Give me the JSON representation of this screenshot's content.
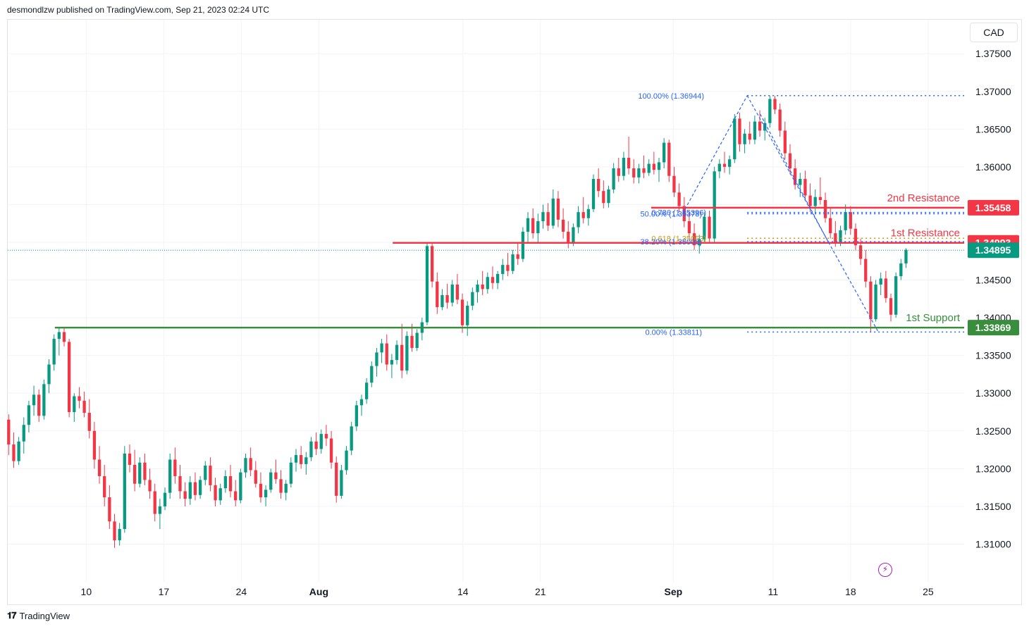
{
  "header": {
    "publisher": "desmondlzw published on TradingView.com, Sep 21, 2023 02:24 UTC"
  },
  "currency": "CAD",
  "footer": {
    "brand": "TradingView",
    "logo_icon": "tradingview-logo-icon"
  },
  "colors": {
    "up": "#089981",
    "down": "#f23645",
    "resistance": "#f23645",
    "support": "#388e3c",
    "fib": "#2962ff",
    "fib_gold": "#c79a00",
    "current": "#089981",
    "axis_text": "#131722",
    "grid": "#f0f3fa"
  },
  "chart_data": {
    "type": "candlestick",
    "symbol_currency": "CAD",
    "ylim": [
      1.305,
      1.3795
    ],
    "y_ticks": [
      1.31,
      1.315,
      1.32,
      1.325,
      1.33,
      1.335,
      1.34,
      1.345,
      1.35,
      1.355,
      1.36,
      1.365,
      1.37,
      1.375
    ],
    "y_tick_labels": [
      "1.31000",
      "1.31500",
      "1.32000",
      "1.32500",
      "1.33000",
      "1.33500",
      "1.34000",
      "1.34500",
      "1.35000",
      "1.35500",
      "1.36000",
      "1.36500",
      "1.37000",
      "1.37500"
    ],
    "x_ticks": [
      {
        "label": "10",
        "bar": 42
      },
      {
        "label": "17",
        "bar": 84
      },
      {
        "label": "24",
        "bar": 126
      },
      {
        "label": "Aug",
        "bar": 168
      },
      {
        "label": "14",
        "bar": 246
      },
      {
        "label": "21",
        "bar": 288
      },
      {
        "label": "Sep",
        "bar": 360
      },
      {
        "label": "11",
        "bar": 414
      },
      {
        "label": "18",
        "bar": 456
      },
      {
        "label": "25",
        "bar": 498
      }
    ],
    "bars_visible": 518,
    "candles": [
      [
        1.3265,
        1.3272,
        1.3218,
        1.3232
      ],
      [
        1.3232,
        1.3248,
        1.3201,
        1.321
      ],
      [
        1.321,
        1.3242,
        1.3205,
        1.3236
      ],
      [
        1.3236,
        1.3268,
        1.322,
        1.3258
      ],
      [
        1.3258,
        1.329,
        1.3248,
        1.3284
      ],
      [
        1.3284,
        1.331,
        1.327,
        1.3298
      ],
      [
        1.3298,
        1.3305,
        1.3262,
        1.327
      ],
      [
        1.327,
        1.3318,
        1.3265,
        1.3312
      ],
      [
        1.3312,
        1.3345,
        1.33,
        1.3338
      ],
      [
        1.3338,
        1.3378,
        1.333,
        1.3372
      ],
      [
        1.3372,
        1.3388,
        1.335,
        1.3381
      ],
      [
        1.3381,
        1.3386,
        1.3362,
        1.3368
      ],
      [
        1.3368,
        1.3372,
        1.3268,
        1.3275
      ],
      [
        1.3275,
        1.33,
        1.3262,
        1.3296
      ],
      [
        1.3296,
        1.3308,
        1.328,
        1.329
      ],
      [
        1.329,
        1.3302,
        1.3268,
        1.3274
      ],
      [
        1.3274,
        1.3292,
        1.324,
        1.325
      ],
      [
        1.325,
        1.3262,
        1.32,
        1.3212
      ],
      [
        1.3212,
        1.323,
        1.318,
        1.319
      ],
      [
        1.319,
        1.3205,
        1.315,
        1.3162
      ],
      [
        1.3162,
        1.3178,
        1.312,
        1.313
      ],
      [
        1.313,
        1.314,
        1.3095,
        1.3105
      ],
      [
        1.3105,
        1.3128,
        1.3098,
        1.312
      ],
      [
        1.312,
        1.323,
        1.3115,
        1.322
      ],
      [
        1.322,
        1.3232,
        1.3195,
        1.3205
      ],
      [
        1.3205,
        1.3225,
        1.317,
        1.318
      ],
      [
        1.318,
        1.3215,
        1.3175,
        1.3208
      ],
      [
        1.3208,
        1.322,
        1.3178,
        1.3185
      ],
      [
        1.3185,
        1.32,
        1.316,
        1.317
      ],
      [
        1.317,
        1.318,
        1.313,
        1.314
      ],
      [
        1.314,
        1.316,
        1.312,
        1.315
      ],
      [
        1.315,
        1.3175,
        1.3145,
        1.3168
      ],
      [
        1.3168,
        1.322,
        1.316,
        1.3212
      ],
      [
        1.3212,
        1.3228,
        1.318,
        1.319
      ],
      [
        1.319,
        1.3205,
        1.316,
        1.317
      ],
      [
        1.317,
        1.3182,
        1.315,
        1.316
      ],
      [
        1.316,
        1.319,
        1.3152,
        1.3182
      ],
      [
        1.3182,
        1.3195,
        1.3158,
        1.3165
      ],
      [
        1.3165,
        1.319,
        1.316,
        1.3185
      ],
      [
        1.3185,
        1.321,
        1.3178,
        1.3204
      ],
      [
        1.3204,
        1.3215,
        1.317,
        1.3178
      ],
      [
        1.3178,
        1.3188,
        1.315,
        1.3158
      ],
      [
        1.3158,
        1.318,
        1.3152,
        1.3174
      ],
      [
        1.3174,
        1.3198,
        1.3168,
        1.319
      ],
      [
        1.319,
        1.3205,
        1.3162,
        1.317
      ],
      [
        1.317,
        1.3185,
        1.315,
        1.3158
      ],
      [
        1.3158,
        1.32,
        1.3154,
        1.3195
      ],
      [
        1.3195,
        1.322,
        1.3188,
        1.3214
      ],
      [
        1.3214,
        1.3228,
        1.319,
        1.3198
      ],
      [
        1.3198,
        1.321,
        1.3175,
        1.318
      ],
      [
        1.318,
        1.3195,
        1.3155,
        1.3162
      ],
      [
        1.3162,
        1.3178,
        1.315,
        1.3172
      ],
      [
        1.3172,
        1.32,
        1.3168,
        1.3195
      ],
      [
        1.3195,
        1.3212,
        1.318,
        1.3186
      ],
      [
        1.3186,
        1.3198,
        1.316,
        1.3168
      ],
      [
        1.3168,
        1.3185,
        1.3158,
        1.318
      ],
      [
        1.318,
        1.3215,
        1.3175,
        1.3208
      ],
      [
        1.3208,
        1.3226,
        1.3196,
        1.3218
      ],
      [
        1.3218,
        1.323,
        1.32,
        1.3206
      ],
      [
        1.3206,
        1.3222,
        1.3192,
        1.3215
      ],
      [
        1.3215,
        1.3242,
        1.321,
        1.3236
      ],
      [
        1.3236,
        1.3248,
        1.3218,
        1.3226
      ],
      [
        1.3226,
        1.3252,
        1.322,
        1.3246
      ],
      [
        1.3246,
        1.3258,
        1.323,
        1.324
      ],
      [
        1.324,
        1.325,
        1.32,
        1.3208
      ],
      [
        1.3208,
        1.3216,
        1.3155,
        1.3164
      ],
      [
        1.3164,
        1.3205,
        1.316,
        1.3198
      ],
      [
        1.3198,
        1.323,
        1.3192,
        1.3224
      ],
      [
        1.3224,
        1.3262,
        1.3218,
        1.3256
      ],
      [
        1.3256,
        1.329,
        1.325,
        1.3284
      ],
      [
        1.3284,
        1.3298,
        1.327,
        1.3292
      ],
      [
        1.3292,
        1.332,
        1.3286,
        1.3314
      ],
      [
        1.3314,
        1.3342,
        1.3308,
        1.3336
      ],
      [
        1.3336,
        1.336,
        1.3322,
        1.3354
      ],
      [
        1.3354,
        1.3372,
        1.334,
        1.3366
      ],
      [
        1.3366,
        1.3378,
        1.333,
        1.3338
      ],
      [
        1.3338,
        1.3352,
        1.332,
        1.3344
      ],
      [
        1.3344,
        1.337,
        1.3338,
        1.3364
      ],
      [
        1.3364,
        1.3392,
        1.332,
        1.333
      ],
      [
        1.333,
        1.3382,
        1.3325,
        1.3376
      ],
      [
        1.3376,
        1.3392,
        1.3355,
        1.336
      ],
      [
        1.336,
        1.3385,
        1.3356,
        1.338
      ],
      [
        1.338,
        1.34,
        1.337,
        1.3394
      ],
      [
        1.3394,
        1.35,
        1.339,
        1.3495
      ],
      [
        1.3495,
        1.3498,
        1.344,
        1.3448
      ],
      [
        1.3448,
        1.346,
        1.3405,
        1.3414
      ],
      [
        1.3414,
        1.3438,
        1.341,
        1.343
      ],
      [
        1.343,
        1.3445,
        1.3412,
        1.342
      ],
      [
        1.342,
        1.345,
        1.3415,
        1.3444
      ],
      [
        1.3444,
        1.3458,
        1.3418,
        1.3424
      ],
      [
        1.3424,
        1.3432,
        1.338,
        1.339
      ],
      [
        1.339,
        1.3422,
        1.3376,
        1.3416
      ],
      [
        1.3416,
        1.344,
        1.341,
        1.3434
      ],
      [
        1.3434,
        1.345,
        1.342,
        1.3444
      ],
      [
        1.3444,
        1.3462,
        1.343,
        1.3438
      ],
      [
        1.3438,
        1.346,
        1.3432,
        1.3454
      ],
      [
        1.3454,
        1.3468,
        1.3438,
        1.3446
      ],
      [
        1.3446,
        1.3462,
        1.3438,
        1.3458
      ],
      [
        1.3458,
        1.3478,
        1.345,
        1.347
      ],
      [
        1.347,
        1.3486,
        1.3455,
        1.3462
      ],
      [
        1.3462,
        1.349,
        1.3458,
        1.3484
      ],
      [
        1.3484,
        1.35,
        1.347,
        1.3478
      ],
      [
        1.3478,
        1.352,
        1.3474,
        1.3514
      ],
      [
        1.3514,
        1.354,
        1.35,
        1.3532
      ],
      [
        1.3532,
        1.3545,
        1.3505,
        1.3512
      ],
      [
        1.3512,
        1.3538,
        1.35,
        1.3528
      ],
      [
        1.3528,
        1.355,
        1.3518,
        1.354
      ],
      [
        1.354,
        1.3552,
        1.3515,
        1.3522
      ],
      [
        1.3522,
        1.357,
        1.3518,
        1.3558
      ],
      [
        1.3558,
        1.3568,
        1.352,
        1.353
      ],
      [
        1.353,
        1.3545,
        1.3505,
        1.3514
      ],
      [
        1.3514,
        1.3528,
        1.3492,
        1.35
      ],
      [
        1.35,
        1.3525,
        1.3495,
        1.352
      ],
      [
        1.352,
        1.3548,
        1.3512,
        1.354
      ],
      [
        1.354,
        1.356,
        1.3525,
        1.3532
      ],
      [
        1.3532,
        1.355,
        1.3522,
        1.3544
      ],
      [
        1.3544,
        1.359,
        1.354,
        1.3584
      ],
      [
        1.3584,
        1.3598,
        1.356,
        1.3568
      ],
      [
        1.3568,
        1.3582,
        1.3545,
        1.3552
      ],
      [
        1.3552,
        1.3575,
        1.3546,
        1.357
      ],
      [
        1.357,
        1.3605,
        1.3565,
        1.3598
      ],
      [
        1.3598,
        1.3612,
        1.358,
        1.3588
      ],
      [
        1.3588,
        1.362,
        1.3582,
        1.3612
      ],
      [
        1.3612,
        1.364,
        1.359,
        1.3598
      ],
      [
        1.3598,
        1.361,
        1.3578,
        1.3586
      ],
      [
        1.3586,
        1.3604,
        1.3578,
        1.3598
      ],
      [
        1.3598,
        1.3615,
        1.3585,
        1.3592
      ],
      [
        1.3592,
        1.361,
        1.3588,
        1.3604
      ],
      [
        1.3604,
        1.362,
        1.359,
        1.3596
      ],
      [
        1.3596,
        1.3612,
        1.358,
        1.3606
      ],
      [
        1.3606,
        1.3638,
        1.3598,
        1.3632
      ],
      [
        1.3632,
        1.3636,
        1.358,
        1.3588
      ],
      [
        1.3588,
        1.36,
        1.356,
        1.3566
      ],
      [
        1.3566,
        1.3578,
        1.354,
        1.3548
      ],
      [
        1.3548,
        1.356,
        1.352,
        1.3528
      ],
      [
        1.3528,
        1.354,
        1.3505,
        1.3512
      ],
      [
        1.3512,
        1.3525,
        1.349,
        1.3496
      ],
      [
        1.3496,
        1.351,
        1.3485,
        1.3504
      ],
      [
        1.3504,
        1.354,
        1.35,
        1.3534
      ],
      [
        1.3534,
        1.3542,
        1.35,
        1.3505
      ],
      [
        1.3505,
        1.36,
        1.35,
        1.3594
      ],
      [
        1.3594,
        1.361,
        1.3585,
        1.3604
      ],
      [
        1.3604,
        1.362,
        1.3592,
        1.36
      ],
      [
        1.36,
        1.3615,
        1.359,
        1.361
      ],
      [
        1.361,
        1.367,
        1.3605,
        1.3664
      ],
      [
        1.3664,
        1.3672,
        1.362,
        1.363
      ],
      [
        1.363,
        1.365,
        1.3618,
        1.3644
      ],
      [
        1.3644,
        1.366,
        1.363,
        1.3636
      ],
      [
        1.3636,
        1.3668,
        1.363,
        1.366
      ],
      [
        1.366,
        1.3675,
        1.364,
        1.3648
      ],
      [
        1.3648,
        1.3665,
        1.3635,
        1.3658
      ],
      [
        1.3658,
        1.3694,
        1.3652,
        1.369
      ],
      [
        1.369,
        1.3694,
        1.367,
        1.3676
      ],
      [
        1.3676,
        1.3684,
        1.364,
        1.3648
      ],
      [
        1.3648,
        1.366,
        1.361,
        1.3618
      ],
      [
        1.3618,
        1.363,
        1.359,
        1.3598
      ],
      [
        1.3598,
        1.361,
        1.357,
        1.3576
      ],
      [
        1.3576,
        1.3592,
        1.356,
        1.3584
      ],
      [
        1.3584,
        1.3595,
        1.3555,
        1.3562
      ],
      [
        1.3562,
        1.3578,
        1.354,
        1.3548
      ],
      [
        1.3548,
        1.357,
        1.3538,
        1.356
      ],
      [
        1.356,
        1.3586,
        1.355,
        1.3556
      ],
      [
        1.3556,
        1.3566,
        1.3526,
        1.3532
      ],
      [
        1.3532,
        1.3545,
        1.3505,
        1.3512
      ],
      [
        1.3512,
        1.3528,
        1.3494,
        1.35
      ],
      [
        1.35,
        1.3522,
        1.3495,
        1.3516
      ],
      [
        1.3516,
        1.355,
        1.351,
        1.354
      ],
      [
        1.354,
        1.3548,
        1.351,
        1.3518
      ],
      [
        1.3518,
        1.3525,
        1.349,
        1.3496
      ],
      [
        1.3496,
        1.3505,
        1.347,
        1.3478
      ],
      [
        1.3478,
        1.349,
        1.344,
        1.3448
      ],
      [
        1.3448,
        1.3455,
        1.3381,
        1.3398
      ],
      [
        1.3398,
        1.345,
        1.3395,
        1.3444
      ],
      [
        1.3444,
        1.346,
        1.343,
        1.3452
      ],
      [
        1.3452,
        1.3462,
        1.342,
        1.3426
      ],
      [
        1.3426,
        1.3432,
        1.3395,
        1.3404
      ],
      [
        1.3404,
        1.346,
        1.34,
        1.3455
      ],
      [
        1.3455,
        1.3478,
        1.345,
        1.3472
      ],
      [
        1.3472,
        1.3492,
        1.3466,
        1.349
      ]
    ],
    "fibonacci": {
      "levels": [
        {
          "label": "100.00% (1.36944)",
          "value": 1.36944
        },
        {
          "label": "0.786 (1.35396)",
          "value": 1.35396
        },
        {
          "label": "50.00% (1.35378)",
          "value": 1.35378
        },
        {
          "label": "0.618 (1.35053)",
          "value": 1.35053
        },
        {
          "label": "38.20% (1.35008)",
          "value": 1.35008
        },
        {
          "label": "0.00% (1.33811)",
          "value": 1.33811
        }
      ]
    },
    "horizontal_levels": [
      {
        "name": "2nd Resistance",
        "value": 1.35458,
        "label": "1.35458",
        "color": "#f23645"
      },
      {
        "name": "1st Resistance",
        "value": 1.34993,
        "label": "1.34993",
        "color": "#f23645"
      },
      {
        "name": "1st Support",
        "value": 1.33869,
        "label": "1.33869",
        "color": "#388e3c"
      }
    ],
    "current_price": {
      "value": 1.34895,
      "label": "1.34895"
    }
  }
}
